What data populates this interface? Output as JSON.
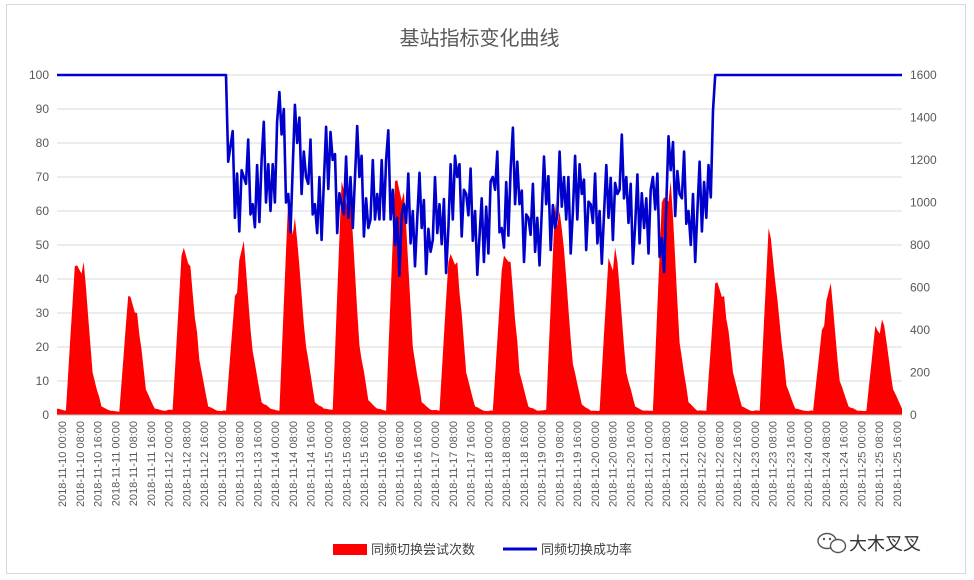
{
  "chart_data": {
    "type": "area+line",
    "title": "基站指标变化曲线",
    "y_left": {
      "min": 0,
      "max": 100,
      "step": 10
    },
    "y_right": {
      "min": 0,
      "max": 1600,
      "step": 200
    },
    "x_tick_labels": [
      "2018-11-10 00:00",
      "2018-11-10 08:00",
      "2018-11-10 16:00",
      "2018-11-11 00:00",
      "2018-11-11 08:00",
      "2018-11-11 16:00",
      "2018-11-12 00:00",
      "2018-11-12 08:00",
      "2018-11-12 16:00",
      "2018-11-13 00:00",
      "2018-11-13 08:00",
      "2018-11-13 16:00",
      "2018-11-14 00:00",
      "2018-11-14 08:00",
      "2018-11-14 16:00",
      "2018-11-15 00:00",
      "2018-11-15 08:00",
      "2018-11-15 16:00",
      "2018-11-16 00:00",
      "2018-11-16 08:00",
      "2018-11-16 16:00",
      "2018-11-17 00:00",
      "2018-11-17 08:00",
      "2018-11-17 16:00",
      "2018-11-18 00:00",
      "2018-11-18 08:00",
      "2018-11-18 16:00",
      "2018-11-19 00:00",
      "2018-11-19 08:00",
      "2018-11-19 16:00",
      "2018-11-20 00:00",
      "2018-11-20 08:00",
      "2018-11-20 16:00",
      "2018-11-21 00:00",
      "2018-11-21 08:00",
      "2018-11-21 16:00",
      "2018-11-22 00:00",
      "2018-11-22 08:00",
      "2018-11-22 16:00",
      "2018-11-23 00:00",
      "2018-11-23 08:00",
      "2018-11-23 16:00",
      "2018-11-24 00:00",
      "2018-11-24 08:00",
      "2018-11-24 16:00",
      "2018-11-25 00:00",
      "2018-11-25 08:00",
      "2018-11-25 16:00"
    ],
    "series": [
      {
        "name": "同频切换尝试次数",
        "type": "area",
        "axis": "right",
        "color": "#ff0000",
        "points_per_day": 6,
        "x_start": "2018-11-10 00:00",
        "step_hours": 4,
        "values": [
          30,
          20,
          700,
          720,
          200,
          40,
          20,
          15,
          560,
          480,
          120,
          30,
          20,
          25,
          750,
          700,
          260,
          40,
          20,
          20,
          560,
          820,
          300,
          60,
          30,
          20,
          1020,
          820,
          320,
          60,
          30,
          25,
          1100,
          1000,
          330,
          70,
          30,
          20,
          1100,
          1050,
          320,
          60,
          25,
          20,
          720,
          720,
          200,
          40,
          20,
          20,
          680,
          720,
          200,
          40,
          20,
          25,
          1000,
          780,
          240,
          50,
          20,
          20,
          740,
          720,
          200,
          40,
          20,
          20,
          1000,
          1100,
          340,
          60,
          20,
          20,
          620,
          560,
          200,
          40,
          20,
          20,
          880,
          540,
          140,
          30,
          20,
          20,
          400,
          620,
          160,
          40,
          20,
          20,
          420,
          420,
          120,
          30
        ]
      },
      {
        "name": "同频切换成功率",
        "type": "line",
        "axis": "left",
        "color": "#0000cc",
        "values_per_day": 6,
        "values": [
          100,
          100,
          100,
          100,
          100,
          100,
          100,
          100,
          100,
          100,
          100,
          100,
          100,
          100,
          100,
          100,
          100,
          100,
          100,
          100,
          58,
          70,
          62,
          75,
          60,
          95,
          65,
          80,
          70,
          62,
          68,
          75,
          62,
          70,
          70,
          55,
          65,
          75,
          50,
          62,
          60,
          55,
          48,
          62,
          55,
          70,
          65,
          60,
          45,
          70,
          55,
          72,
          62,
          58,
          58,
          62,
          55,
          70,
          60,
          65,
          62,
          60,
          58,
          65,
          70,
          56,
          55,
          70,
          52,
          72,
          65,
          60,
          60,
          58,
          100,
          100,
          100,
          100,
          100,
          100,
          100,
          100,
          100,
          100,
          100,
          100,
          100,
          100,
          100,
          100,
          100,
          100,
          100,
          100,
          100,
          100
        ]
      }
    ],
    "legend": [
      "同频切换尝试次数",
      "同频切换成功率"
    ],
    "legend_position": "bottom",
    "grid": true
  },
  "watermark": {
    "text": "大木叉叉"
  }
}
